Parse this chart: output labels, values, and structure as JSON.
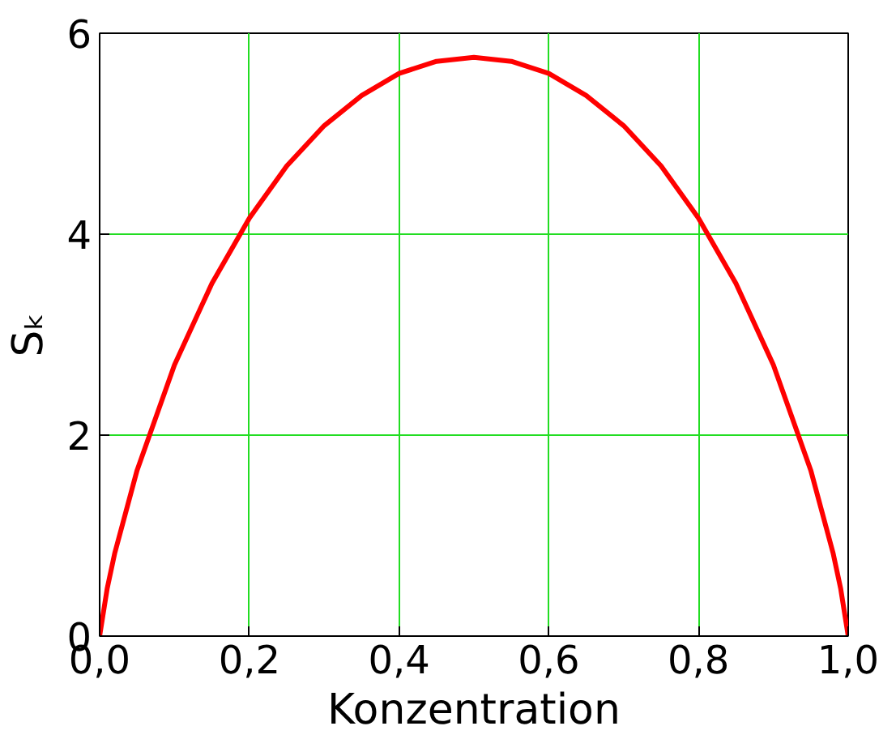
{
  "chart_data": {
    "type": "line",
    "xlabel": "Konzentration",
    "ylabel": "Sₖ",
    "x": [
      0,
      0.01,
      0.02,
      0.05,
      0.1,
      0.15,
      0.2,
      0.25,
      0.3,
      0.35,
      0.4,
      0.45,
      0.5,
      0.55,
      0.6,
      0.65,
      0.7,
      0.75,
      0.8,
      0.85,
      0.9,
      0.95,
      0.98,
      0.99,
      1
    ],
    "series": [
      {
        "color": "#ff0000",
        "values": [
          0,
          0.47,
          0.82,
          1.65,
          2.7,
          3.51,
          4.16,
          4.68,
          5.08,
          5.38,
          5.6,
          5.72,
          5.76,
          5.72,
          5.6,
          5.38,
          5.08,
          4.68,
          4.16,
          3.51,
          2.7,
          1.65,
          0.82,
          0.47,
          0
        ]
      }
    ],
    "xlim": [
      0,
      1
    ],
    "ylim": [
      0,
      6
    ],
    "xticks": [
      {
        "value": 0,
        "label": "0,0"
      },
      {
        "value": 0.2,
        "label": "0,2"
      },
      {
        "value": 0.4,
        "label": "0,4"
      },
      {
        "value": 0.6,
        "label": "0,6"
      },
      {
        "value": 0.8,
        "label": "0,8"
      },
      {
        "value": 1,
        "label": "1,0"
      }
    ],
    "yticks": [
      0,
      2,
      4,
      6
    ],
    "grid": true,
    "marker": "none",
    "line_style": "solid"
  }
}
